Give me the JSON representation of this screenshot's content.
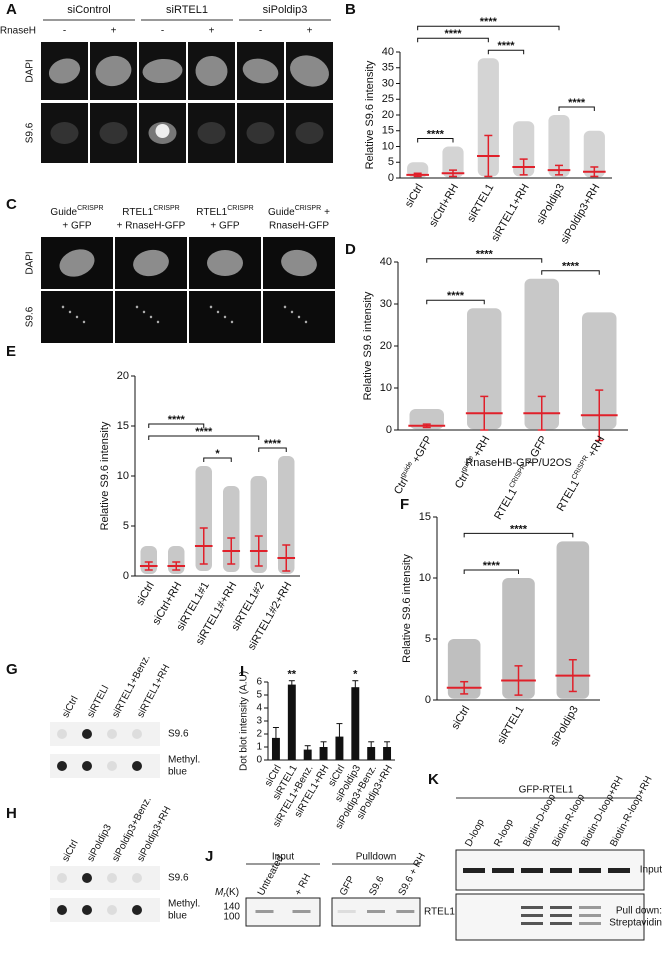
{
  "panels": {
    "A": {
      "letter": "A",
      "groups": [
        "siControl",
        "siRTEL1",
        "siPoldip3"
      ],
      "treatment_label": "RnaseH",
      "treatments": [
        "-",
        "+",
        "-",
        "+",
        "-",
        "+"
      ],
      "rows": [
        "DAPI",
        "S9.6"
      ]
    },
    "C": {
      "letter": "C",
      "columns": [
        {
          "name": "Guide",
          "sup": "CRISPR",
          "line2": "+ GFP"
        },
        {
          "name": "RTEL1",
          "sup": "CRISPR",
          "line2": "+ RnaseH-GFP"
        },
        {
          "name": "RTEL1",
          "sup": "CRISPR",
          "line2": "+ GFP"
        },
        {
          "name": "Guide",
          "sup": "CRISPR",
          "tail": "+",
          "line2": "RnaseH-GFP"
        }
      ],
      "rows": [
        "DAPI",
        "S9.6"
      ]
    },
    "G": {
      "letter": "G",
      "lanes": [
        "siCtrl",
        "siRTELl",
        "siRTEL1+Benz.",
        "siRTEL1+RH"
      ],
      "rows": [
        [
          "S9.6"
        ],
        [
          "Methyl.",
          "blue"
        ]
      ]
    },
    "H": {
      "letter": "H",
      "lanes": [
        "siCtrl",
        "siPoldip3",
        "siPoldip3+Benz.",
        "siPoldip3+RH"
      ],
      "rows": [
        [
          "S9.6"
        ],
        [
          "Methyl.",
          "blue"
        ]
      ]
    },
    "J": {
      "letter": "J",
      "groups": [
        {
          "name": "Input",
          "lanes": [
            "Untreated",
            "+ RH"
          ]
        },
        {
          "name": "Pulldown",
          "lanes": [
            "GFP",
            "S9.6",
            "S9.6 + RH"
          ]
        }
      ],
      "mw_label": "M",
      "mw_sub": "r",
      "mw_unit": "(K)",
      "markers": [
        "140",
        "100"
      ],
      "band": "RTEL1"
    },
    "K": {
      "letter": "K",
      "header": "GFP-RTEL1",
      "lanes": [
        "D-loop",
        "R-loop",
        "Biotin-D-loop",
        "Biotin-R-loop",
        "Biotin-D-loop+RH",
        "Biotin-R-loop+RH"
      ],
      "rows": [
        [
          "Input"
        ],
        [
          "Pull down:",
          "Streptavidin"
        ]
      ]
    }
  },
  "chart_data": [
    {
      "type": "strip",
      "panel": "B",
      "ylabel": "Relative S9.6 intensity",
      "categories": [
        "siCtrl",
        "siCtrl+RH",
        "siRTEL1",
        "siRTEL1+RH",
        "siPoldip3",
        "siPoldip3+RH"
      ],
      "values": [
        1,
        1.5,
        7,
        3.5,
        2.5,
        2
      ],
      "errors": [
        0.5,
        1,
        6.5,
        2.5,
        1.5,
        1.5
      ],
      "ranges": [
        [
          0.2,
          5
        ],
        [
          0.2,
          10
        ],
        [
          0.5,
          38
        ],
        [
          0.5,
          18
        ],
        [
          0.3,
          20
        ],
        [
          0.2,
          15
        ]
      ],
      "ylim": [
        0,
        40
      ],
      "yticks": [
        0,
        5,
        10,
        15,
        20,
        25,
        30,
        35,
        40
      ],
      "dot_color": "#b0b0b0",
      "mean_color": "#e0202a",
      "significance": [
        {
          "label": "****",
          "between": [
            0,
            1
          ]
        },
        {
          "label": "****",
          "between": [
            4,
            5
          ]
        },
        {
          "label": "****",
          "between": [
            2,
            3
          ]
        },
        {
          "label": "****",
          "between": [
            0,
            2
          ]
        },
        {
          "label": "****",
          "between": [
            0,
            4
          ]
        }
      ]
    },
    {
      "type": "strip",
      "panel": "D",
      "ylabel": "Relative S9.6 intensity",
      "categories": [
        [
          "Ctrl",
          "guide",
          "+GFP"
        ],
        [
          "Ctrl",
          "guide",
          "+RH"
        ],
        [
          "RTEL1",
          "CRISPR",
          "+ GFP"
        ],
        [
          "RTEL1",
          "CRISPR",
          "+RH"
        ]
      ],
      "values": [
        1,
        4,
        4,
        3.5
      ],
      "errors": [
        0.4,
        4,
        4,
        6
      ],
      "ranges": [
        [
          0.2,
          5
        ],
        [
          0.2,
          29
        ],
        [
          0.2,
          36
        ],
        [
          0.2,
          28
        ]
      ],
      "ylim": [
        0,
        40
      ],
      "yticks": [
        0,
        10,
        20,
        30,
        40
      ],
      "dot_color": "#9a9a9a",
      "mean_color": "#e0202a",
      "significance": [
        {
          "label": "****",
          "between": [
            0,
            1
          ]
        },
        {
          "label": "****",
          "between": [
            2,
            3
          ]
        },
        {
          "label": "****",
          "between": [
            0,
            2
          ]
        }
      ]
    },
    {
      "type": "strip",
      "panel": "E",
      "ylabel": "Relative S9.6 intensity",
      "categories": [
        "siCtrl",
        "siCtrl+RH",
        "siRTEL1#1",
        "siRTEL1#+RH",
        "siRTEL1#2",
        "siRTEL1#2+RH"
      ],
      "values": [
        1,
        1,
        3,
        2.5,
        2.5,
        1.8
      ],
      "errors": [
        0.4,
        0.4,
        1.8,
        1.3,
        1.5,
        1.3
      ],
      "ranges": [
        [
          0.2,
          3
        ],
        [
          0.2,
          3
        ],
        [
          0.5,
          11
        ],
        [
          0.4,
          9
        ],
        [
          0.3,
          10
        ],
        [
          0.2,
          12
        ]
      ],
      "ylim": [
        0,
        20
      ],
      "yticks": [
        0,
        5,
        10,
        15,
        20
      ],
      "dot_color": "#9a9a9a",
      "mean_color": "#e0202a",
      "significance": [
        {
          "label": "*",
          "between": [
            2,
            3
          ]
        },
        {
          "label": "****",
          "between": [
            4,
            5
          ]
        },
        {
          "label": "****",
          "between": [
            0,
            4
          ]
        },
        {
          "label": "****",
          "between": [
            0,
            2
          ]
        }
      ]
    },
    {
      "type": "strip",
      "panel": "F",
      "title": "RnaseHB-GFP/U2OS",
      "ylabel": "Relative S9.6 intensity",
      "categories": [
        "siCtrl",
        "siRTEL1",
        "siPoldip3"
      ],
      "values": [
        1,
        1.6,
        2
      ],
      "errors": [
        0.5,
        1.2,
        1.3
      ],
      "ranges": [
        [
          0.1,
          5
        ],
        [
          0.1,
          10
        ],
        [
          0.1,
          13
        ]
      ],
      "ylim": [
        0,
        15
      ],
      "yticks": [
        0,
        5,
        10,
        15
      ],
      "dot_color": "#8a8a8a",
      "mean_color": "#e0202a",
      "significance": [
        {
          "label": "****",
          "between": [
            0,
            1
          ]
        },
        {
          "label": "****",
          "between": [
            0,
            2
          ]
        }
      ]
    },
    {
      "type": "bar",
      "panel": "I",
      "ylabel": "Dot blot intensity (A.U)",
      "categories": [
        "siCtrl",
        "siRTEL1",
        "siRTEL1+Benz.",
        "siRTEL1+RH",
        "siCtrl",
        "siPoldip3",
        "siPoldip3+Benz.",
        "siPoldip3+RH"
      ],
      "values": [
        1.7,
        5.8,
        0.8,
        1.0,
        1.8,
        5.6,
        1.0,
        1.0
      ],
      "errors": [
        0.8,
        0.3,
        0.3,
        0.4,
        1.0,
        0.5,
        0.4,
        0.4
      ],
      "ylim": [
        0,
        6
      ],
      "yticks": [
        0,
        1,
        2,
        3,
        4,
        5,
        6
      ],
      "color": "#111111",
      "annotations": [
        {
          "text": "**",
          "index": 1
        },
        {
          "text": "*",
          "index": 5
        }
      ]
    }
  ]
}
